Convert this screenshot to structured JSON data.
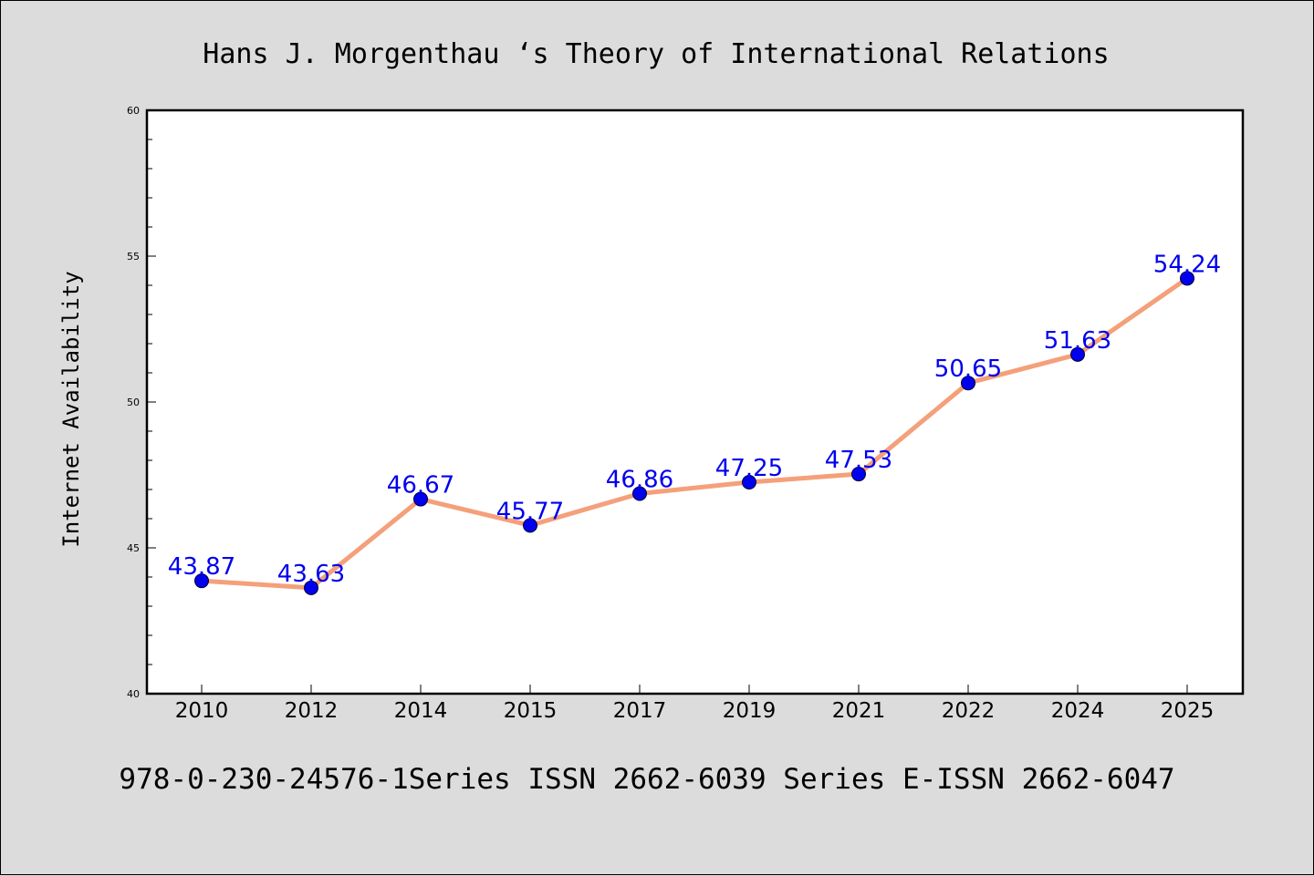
{
  "chart_data": {
    "type": "line",
    "title": "Hans J. Morgenthau ‘s Theory of International Relations",
    "ylabel": "Internet Availability",
    "xlabel": "",
    "footer": "978-0-230-24576-1Series ISSN 2662-6039 Series E-ISSN 2662-6047",
    "categories": [
      "2010",
      "2012",
      "2014",
      "2015",
      "2017",
      "2019",
      "2021",
      "2022",
      "2024",
      "2025"
    ],
    "values": [
      43.87,
      43.63,
      46.67,
      45.77,
      46.86,
      47.25,
      47.53,
      50.65,
      51.63,
      54.24
    ],
    "data_labels": [
      "43.87",
      "43.63",
      "46.67",
      "45.77",
      "46.86",
      "47.25",
      "47.53",
      "50.65",
      "51.63",
      "54.24"
    ],
    "ylim": [
      40,
      60
    ],
    "yticks": [
      "40",
      "45",
      "50",
      "55",
      "60"
    ],
    "grid": false,
    "line_color": "#f4a07a",
    "marker_color": "#0000ee",
    "label_color": "#0000ee"
  }
}
